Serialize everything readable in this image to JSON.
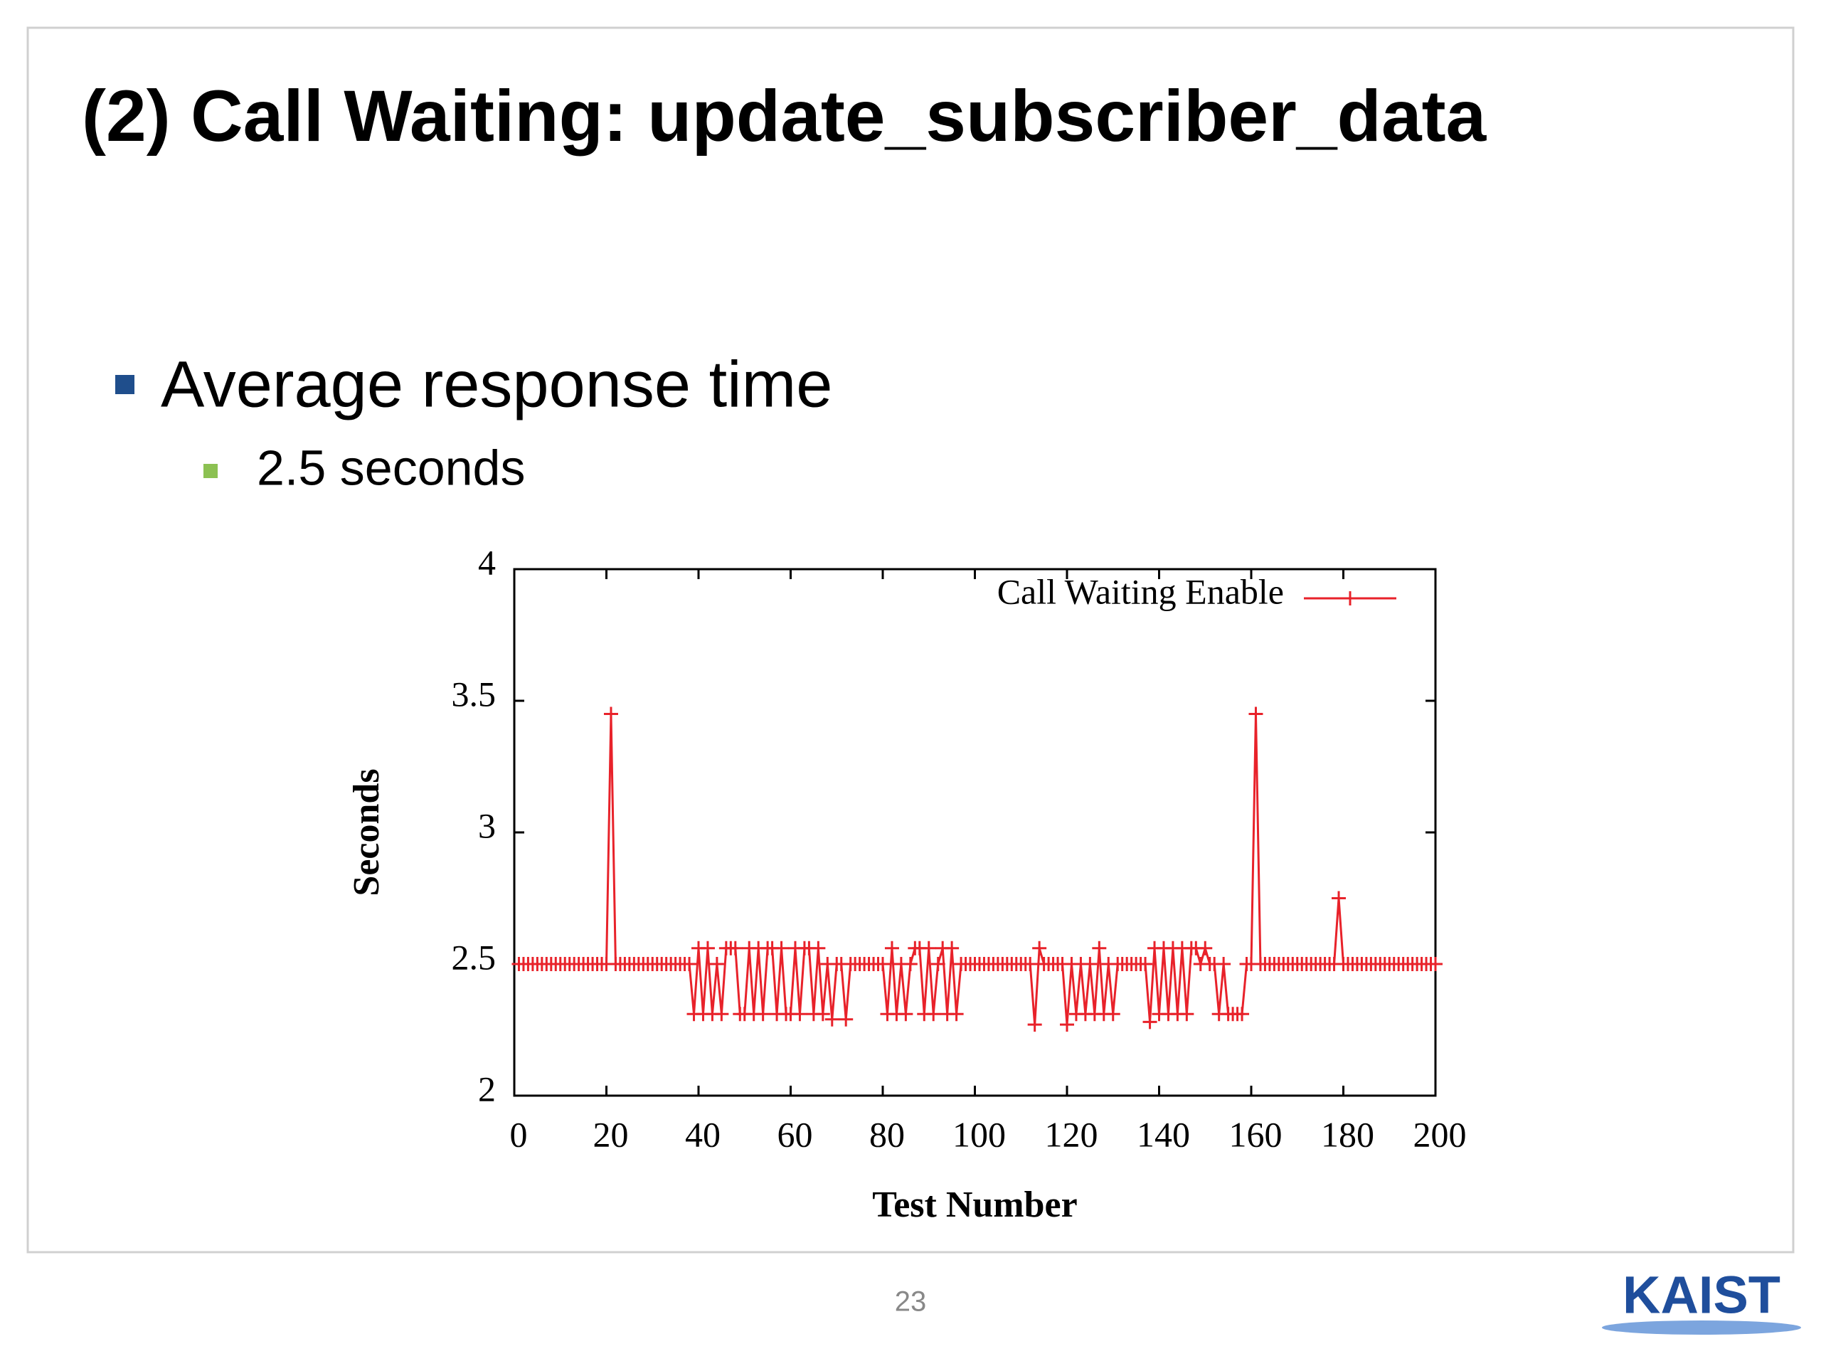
{
  "slide": {
    "title": "(2) Call Waiting: update_subscriber_data",
    "bullet": "Average response time",
    "sub_bullet": "2.5 seconds",
    "page_number": "23",
    "logo": "KAIST"
  },
  "chart_data": {
    "type": "line",
    "xlabel": "Test Number",
    "ylabel": "Seconds",
    "x": [
      1,
      2,
      3,
      4,
      5,
      6,
      7,
      8,
      9,
      10,
      11,
      12,
      13,
      14,
      15,
      16,
      17,
      18,
      19,
      20,
      21,
      22,
      23,
      24,
      25,
      26,
      27,
      28,
      29,
      30,
      31,
      32,
      33,
      34,
      35,
      36,
      37,
      38,
      39,
      40,
      41,
      42,
      43,
      44,
      45,
      46,
      47,
      48,
      49,
      50,
      51,
      52,
      53,
      54,
      55,
      56,
      57,
      58,
      59,
      60,
      61,
      62,
      63,
      64,
      65,
      66,
      67,
      68,
      69,
      70,
      71,
      72,
      73,
      74,
      75,
      76,
      77,
      78,
      79,
      80,
      81,
      82,
      83,
      84,
      85,
      86,
      87,
      88,
      89,
      90,
      91,
      92,
      93,
      94,
      95,
      96,
      97,
      98,
      99,
      100,
      101,
      102,
      103,
      104,
      105,
      106,
      107,
      108,
      109,
      110,
      111,
      112,
      113,
      114,
      115,
      116,
      117,
      118,
      119,
      120,
      121,
      122,
      123,
      124,
      125,
      126,
      127,
      128,
      129,
      130,
      131,
      132,
      133,
      134,
      135,
      136,
      137,
      138,
      139,
      140,
      141,
      142,
      143,
      144,
      145,
      146,
      147,
      148,
      149,
      150,
      151,
      152,
      153,
      154,
      155,
      156,
      157,
      158,
      159,
      160,
      161,
      162,
      163,
      164,
      165,
      166,
      167,
      168,
      169,
      170,
      171,
      172,
      173,
      174,
      175,
      176,
      177,
      178,
      179,
      180,
      181,
      182,
      183,
      184,
      185,
      186,
      187,
      188,
      189,
      190,
      191,
      192,
      193,
      194,
      195,
      196,
      197,
      198,
      199,
      200
    ],
    "series": [
      {
        "name": "Call Waiting Enable",
        "color": "#e8222a",
        "values": [
          2.5,
          2.5,
          2.5,
          2.5,
          2.5,
          2.5,
          2.5,
          2.5,
          2.5,
          2.5,
          2.5,
          2.5,
          2.5,
          2.5,
          2.5,
          2.5,
          2.5,
          2.5,
          2.5,
          2.5,
          3.45,
          2.5,
          2.5,
          2.5,
          2.5,
          2.5,
          2.5,
          2.5,
          2.5,
          2.5,
          2.5,
          2.5,
          2.5,
          2.5,
          2.5,
          2.5,
          2.5,
          2.5,
          2.31,
          2.56,
          2.31,
          2.56,
          2.31,
          2.5,
          2.31,
          2.56,
          2.56,
          2.56,
          2.31,
          2.31,
          2.56,
          2.31,
          2.56,
          2.31,
          2.56,
          2.56,
          2.31,
          2.56,
          2.31,
          2.31,
          2.56,
          2.31,
          2.56,
          2.56,
          2.31,
          2.56,
          2.31,
          2.5,
          2.29,
          2.5,
          2.5,
          2.29,
          2.5,
          2.5,
          2.5,
          2.5,
          2.5,
          2.5,
          2.5,
          2.5,
          2.31,
          2.56,
          2.31,
          2.5,
          2.31,
          2.5,
          2.56,
          2.56,
          2.31,
          2.56,
          2.31,
          2.5,
          2.56,
          2.31,
          2.56,
          2.31,
          2.5,
          2.5,
          2.5,
          2.5,
          2.5,
          2.5,
          2.5,
          2.5,
          2.5,
          2.5,
          2.5,
          2.5,
          2.5,
          2.5,
          2.5,
          2.5,
          2.27,
          2.56,
          2.5,
          2.5,
          2.5,
          2.5,
          2.5,
          2.27,
          2.5,
          2.31,
          2.5,
          2.31,
          2.5,
          2.31,
          2.56,
          2.31,
          2.5,
          2.31,
          2.5,
          2.5,
          2.5,
          2.5,
          2.5,
          2.5,
          2.5,
          2.28,
          2.56,
          2.31,
          2.56,
          2.31,
          2.56,
          2.31,
          2.56,
          2.31,
          2.56,
          2.56,
          2.5,
          2.56,
          2.5,
          2.5,
          2.31,
          2.5,
          2.31,
          2.31,
          2.31,
          2.31,
          2.5,
          2.5,
          3.45,
          2.5,
          2.5,
          2.5,
          2.5,
          2.5,
          2.5,
          2.5,
          2.5,
          2.5,
          2.5,
          2.5,
          2.5,
          2.5,
          2.5,
          2.5,
          2.5,
          2.5,
          2.75,
          2.5,
          2.5,
          2.5,
          2.5,
          2.5,
          2.5,
          2.5,
          2.5,
          2.5,
          2.5,
          2.5,
          2.5,
          2.5,
          2.5,
          2.5,
          2.5,
          2.5,
          2.5,
          2.5,
          2.5,
          2.5
        ]
      }
    ],
    "xlim": [
      0,
      200
    ],
    "ylim": [
      2,
      4
    ],
    "xticks": [
      0,
      20,
      40,
      60,
      80,
      100,
      120,
      140,
      160,
      180,
      200
    ],
    "yticks": [
      2,
      2.5,
      3,
      3.5,
      4
    ],
    "legend": "upper right"
  }
}
